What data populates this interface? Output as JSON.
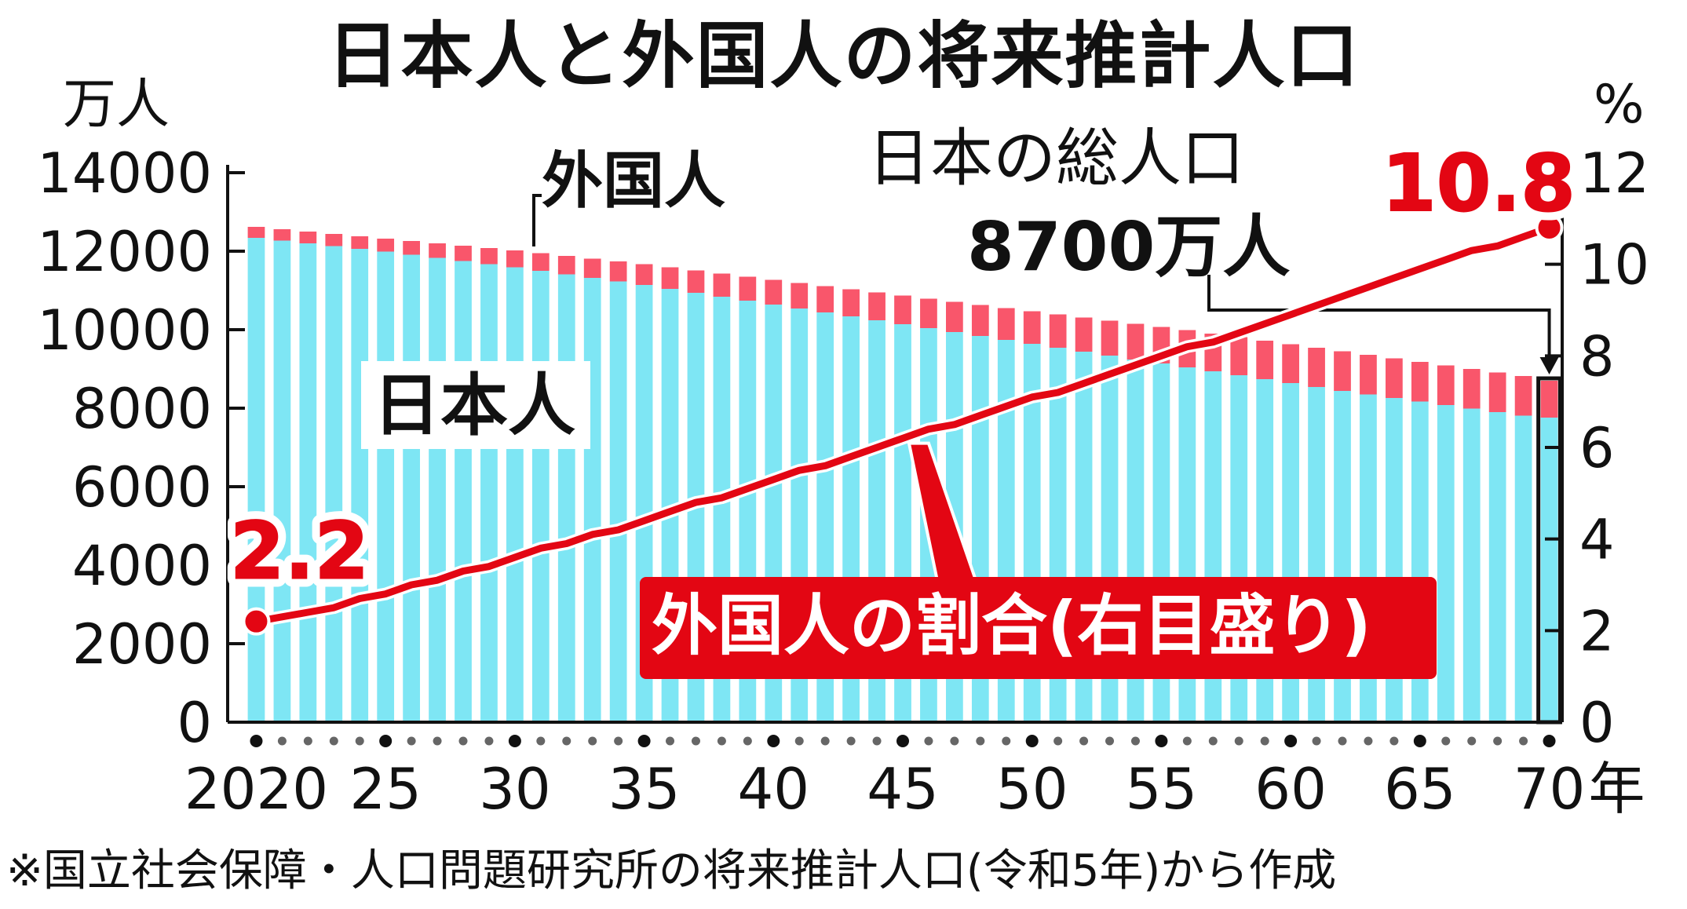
{
  "title": "日本人と外国人の将来推計人口",
  "left_axis_unit": "万人",
  "right_axis_unit": "%",
  "x_axis_unit": "年",
  "labels": {
    "foreign": "外国人",
    "japanese": "日本人",
    "total_title": "日本の総人口",
    "total_value": "8700万人",
    "share_line": "外国人の割合(右目盛り)"
  },
  "source": "※国立社会保障・人口問題研究所の将来推計人口(令和5年)から作成",
  "colors": {
    "japanese_bar": "#7ee6f4",
    "foreign_bar": "#f9566b",
    "share_line": "#e30613",
    "highlight_bar_outline": "#111111"
  },
  "chart_data": {
    "type": "bar",
    "stacked": true,
    "title": "日本人と外国人の将来推計人口",
    "x": [
      2020,
      2021,
      2022,
      2023,
      2024,
      2025,
      2026,
      2027,
      2028,
      2029,
      2030,
      2031,
      2032,
      2033,
      2034,
      2035,
      2036,
      2037,
      2038,
      2039,
      2040,
      2041,
      2042,
      2043,
      2044,
      2045,
      2046,
      2047,
      2048,
      2049,
      2050,
      2051,
      2052,
      2053,
      2054,
      2055,
      2056,
      2057,
      2058,
      2059,
      2060,
      2061,
      2062,
      2063,
      2064,
      2065,
      2066,
      2067,
      2068,
      2069,
      2070
    ],
    "x_tick_labels": {
      "2020": "2020",
      "2025": "25",
      "2030": "30",
      "2035": "35",
      "2040": "40",
      "2045": "45",
      "2050": "50",
      "2055": "55",
      "2060": "60",
      "2065": "65",
      "2070": "70"
    },
    "y_left": {
      "label": "万人",
      "range": [
        0,
        14000
      ],
      "ticks": [
        0,
        2000,
        4000,
        6000,
        8000,
        10000,
        12000,
        14000
      ]
    },
    "y_right": {
      "label": "%",
      "range": [
        0,
        12
      ],
      "ticks": [
        0,
        2,
        4,
        6,
        8,
        10,
        12
      ]
    },
    "series": [
      {
        "name": "日本人",
        "axis": "left",
        "values": [
          12340,
          12270,
          12200,
          12130,
          12060,
          11990,
          11910,
          11830,
          11750,
          11670,
          11590,
          11500,
          11410,
          11320,
          11230,
          11140,
          11040,
          10940,
          10840,
          10740,
          10640,
          10540,
          10440,
          10340,
          10240,
          10140,
          10040,
          9940,
          9840,
          9740,
          9640,
          9540,
          9440,
          9340,
          9240,
          9140,
          9040,
          8940,
          8840,
          8740,
          8640,
          8540,
          8440,
          8350,
          8260,
          8170,
          8080,
          7990,
          7900,
          7810,
          7760
        ]
      },
      {
        "name": "外国人",
        "axis": "left",
        "values": [
          280,
          290,
          300,
          310,
          320,
          330,
          350,
          370,
          390,
          410,
          430,
          450,
          470,
          490,
          510,
          530,
          550,
          570,
          590,
          610,
          630,
          650,
          670,
          690,
          710,
          730,
          750,
          770,
          790,
          810,
          830,
          850,
          870,
          890,
          910,
          930,
          950,
          960,
          970,
          980,
          990,
          1000,
          1010,
          1010,
          1010,
          1010,
          1010,
          1010,
          1010,
          1010,
          940
        ]
      },
      {
        "name": "外国人の割合",
        "type": "line",
        "axis": "right",
        "values": [
          2.2,
          2.3,
          2.4,
          2.5,
          2.7,
          2.8,
          3.0,
          3.1,
          3.3,
          3.4,
          3.6,
          3.8,
          3.9,
          4.1,
          4.2,
          4.4,
          4.6,
          4.8,
          4.9,
          5.1,
          5.3,
          5.5,
          5.6,
          5.8,
          6.0,
          6.2,
          6.4,
          6.5,
          6.7,
          6.9,
          7.1,
          7.2,
          7.4,
          7.6,
          7.8,
          8.0,
          8.2,
          8.3,
          8.5,
          8.7,
          8.9,
          9.1,
          9.3,
          9.5,
          9.7,
          9.9,
          10.1,
          10.3,
          10.4,
          10.6,
          10.8
        ]
      }
    ],
    "annotations": [
      {
        "text": "2.2",
        "x": 2020,
        "series": "外国人の割合"
      },
      {
        "text": "10.8",
        "x": 2070,
        "series": "外国人の割合"
      },
      {
        "text": "日本の総人口",
        "x": 2070
      },
      {
        "text": "8700万人",
        "x": 2070
      }
    ],
    "highlight_x": 2070,
    "grid": false
  }
}
